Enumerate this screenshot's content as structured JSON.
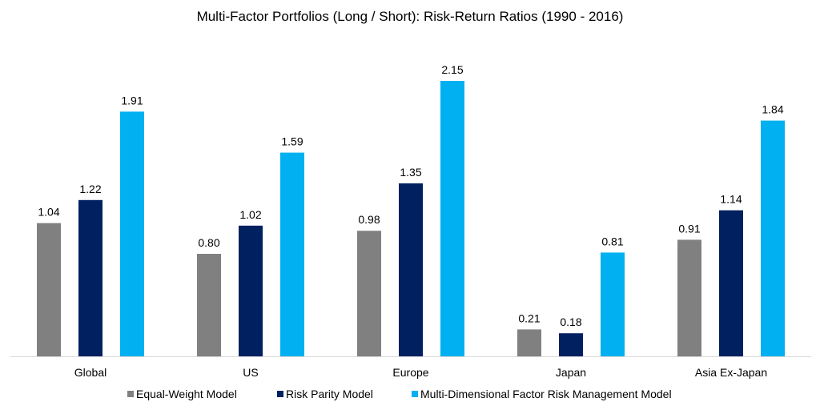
{
  "chart_data": {
    "type": "bar",
    "title": "Multi-Factor Portfolios (Long / Short): Risk-Return Ratios (1990 - 2016)",
    "xlabel": "",
    "ylabel": "",
    "categories": [
      "Global",
      "US",
      "Europe",
      "Japan",
      "Asia Ex-Japan"
    ],
    "series": [
      {
        "name": "Equal-Weight Model",
        "color": "#808080",
        "values": [
          1.04,
          0.8,
          0.98,
          0.21,
          0.91
        ]
      },
      {
        "name": "Risk Parity Model",
        "color": "#002060",
        "values": [
          1.22,
          1.02,
          1.35,
          0.18,
          1.14
        ]
      },
      {
        "name": "Multi-Dimensional Factor Risk Management Model",
        "color": "#00B0F0",
        "values": [
          1.91,
          1.59,
          2.15,
          0.81,
          1.84
        ]
      }
    ],
    "ylim": [
      0,
      2.5
    ],
    "grid": false,
    "legend_position": "bottom",
    "data_labels": true
  }
}
